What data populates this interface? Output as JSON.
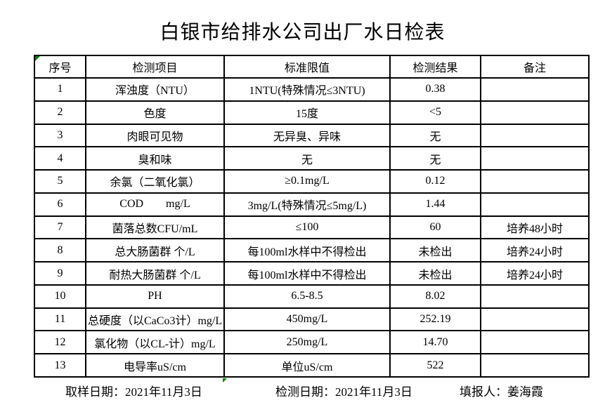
{
  "title": "白银市给排水公司出厂水日检表",
  "table": {
    "headers": [
      "序号",
      "检测项目",
      "标准限值",
      "检测结果",
      "备注"
    ],
    "rows": [
      [
        "1",
        "浑浊度（NTU）",
        "1NTU(特殊情况≤3NTU)",
        "0.38",
        ""
      ],
      [
        "2",
        "色度",
        "15度",
        "<5",
        ""
      ],
      [
        "3",
        "肉眼可见物",
        "无异臭、异味",
        "无",
        ""
      ],
      [
        "4",
        "臭和味",
        "无",
        "无",
        ""
      ],
      [
        "5",
        "余氯（二氧化氯）",
        "≥0.1mg/L",
        "0.12",
        ""
      ],
      [
        "6",
        "COD        mg/L",
        "3mg/L(特殊情况≤5mg/L)",
        "1.44",
        ""
      ],
      [
        "7",
        "菌落总数CFU/mL",
        "≤100",
        "60",
        "培养48小时"
      ],
      [
        "8",
        "总大肠菌群 个/L",
        "每100ml水样中不得检出",
        "未检出",
        "培养24小时"
      ],
      [
        "9",
        "耐热大肠菌群 个/L",
        "每100ml水样中不得检出",
        "未检出",
        "培养24小时"
      ],
      [
        "10",
        "PH",
        "6.5-8.5",
        "8.02",
        ""
      ],
      [
        "11",
        "总硬度（以CaCo3计）mg/L",
        "450mg/L",
        "252.19",
        ""
      ],
      [
        "12",
        "氯化物（以CL-计）mg/L",
        "250mg/L",
        "14.70",
        ""
      ],
      [
        "13",
        "电导率uS/cm",
        "单位uS/cm",
        "522",
        ""
      ]
    ]
  },
  "footer": {
    "sampling_label": "取样日期：",
    "sampling_date": "2021年11月3日",
    "testing_label": "检测日期：",
    "testing_date": "2021年11月3日",
    "reporter_label": "填报人：",
    "reporter_name": "姜海霞"
  },
  "colors": {
    "error_marker_green": "#008000",
    "border": "#000000",
    "background": "#ffffff"
  }
}
